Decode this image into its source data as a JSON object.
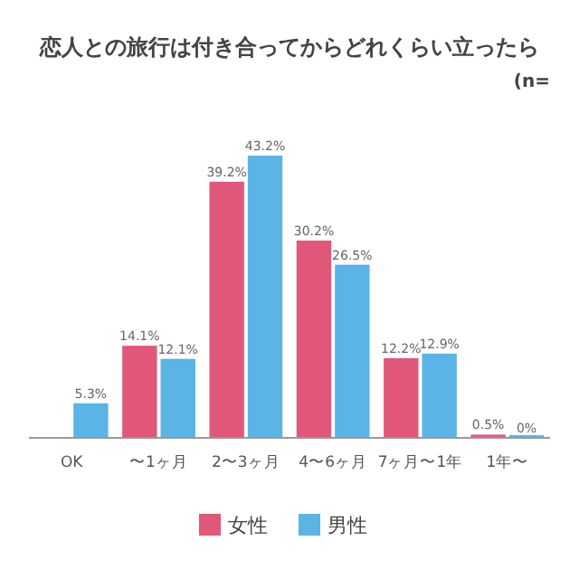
{
  "chart_data": {
    "type": "bar",
    "title": "恋人との旅行は付き合ってからどれくらい立ったら",
    "annotations": [
      "(n="
    ],
    "categories": [
      "OK",
      "〜1ヶ月",
      "2〜3ヶ月",
      "4〜6ヶ月",
      "7ヶ月〜1年",
      "1年〜"
    ],
    "series": [
      {
        "name": "女性",
        "color": "#e0577a",
        "values": [
          null,
          14.1,
          39.2,
          30.2,
          12.2,
          0.5
        ],
        "value_labels": [
          null,
          "14.1%",
          "39.2%",
          "30.2%",
          "12.2%",
          "0.5%"
        ]
      },
      {
        "name": "男性",
        "color": "#5ab4e5",
        "values": [
          5.3,
          12.1,
          43.2,
          26.5,
          12.9,
          0
        ],
        "value_labels": [
          "5.3%",
          "12.1%",
          "43.2%",
          "26.5%",
          "12.9%",
          "0%"
        ]
      }
    ],
    "tick_labels": "x",
    "legend": "bottom"
  }
}
